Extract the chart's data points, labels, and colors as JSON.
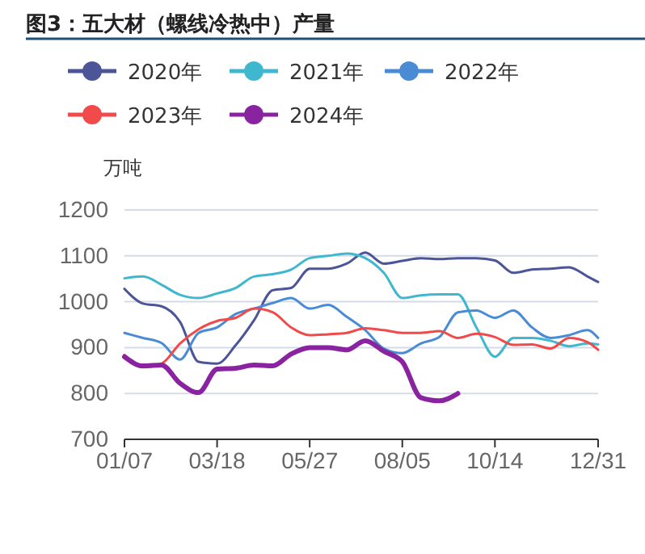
{
  "chart_data": {
    "type": "line",
    "title": "图3：五大材（螺线冷热中）产量",
    "ylabel": "万吨",
    "x": [
      "--01-07",
      "--01-21",
      "--02-04",
      "--02-18",
      "--03-04",
      "--03-18",
      "--04-01",
      "--04-15",
      "--04-29",
      "--05-13",
      "--05-27",
      "--06-10",
      "--06-24",
      "--07-08",
      "--07-22",
      "--08-05",
      "--08-19",
      "--09-02",
      "--09-16",
      "--09-30",
      "--10-14",
      "--10-28",
      "--11-11",
      "--11-25",
      "--12-09",
      "--12-23",
      "--12-31"
    ],
    "series": [
      {
        "name": "2020年",
        "color": "#4b5598",
        "values": [
          1028,
          996,
          990,
          956,
          869,
          865,
          905,
          960,
          1025,
          1030,
          1072,
          1072,
          1083,
          1107,
          1083,
          1089,
          1095,
          1093,
          1095,
          1095,
          1090,
          1063,
          1070,
          1072,
          1075,
          1055,
          1043
        ]
      },
      {
        "name": "2021年",
        "color": "#3fb8cf",
        "values": [
          1051,
          1055,
          1037,
          1015,
          1008,
          1018,
          1030,
          1055,
          1060,
          1070,
          1095,
          1100,
          1105,
          1095,
          1063,
          1008,
          1014,
          1016,
          1016,
          944,
          880,
          921,
          921,
          915,
          903,
          909,
          907
        ]
      },
      {
        "name": "2022年",
        "color": "#4a8bd6",
        "values": [
          932,
          921,
          910,
          874,
          932,
          944,
          973,
          985,
          997,
          1008,
          985,
          993,
          967,
          938,
          898,
          888,
          909,
          923,
          977,
          981,
          965,
          981,
          944,
          921,
          927,
          938,
          921
        ]
      },
      {
        "name": "2023年",
        "color": "#f04a4a",
        "values": [
          884,
          857,
          865,
          909,
          940,
          958,
          965,
          985,
          977,
          944,
          927,
          929,
          932,
          942,
          938,
          932,
          932,
          936,
          921,
          930,
          923,
          906,
          907,
          898,
          921,
          912,
          895
        ]
      },
      {
        "name": "2024年",
        "color": "#8a23a0",
        "values": [
          880,
          860,
          862,
          822,
          802,
          853,
          855,
          862,
          860,
          886,
          900,
          900,
          895,
          915,
          892,
          869,
          791,
          784,
          800,
          null,
          null,
          null,
          null,
          null,
          null,
          null,
          null
        ]
      }
    ],
    "xlim": [
      "--01-07",
      "--12-31"
    ],
    "xticks": [
      {
        "value": "--01-07",
        "label": "01/07"
      },
      {
        "value": "--03-18",
        "label": "03/18"
      },
      {
        "value": "--05-27",
        "label": "05/27"
      },
      {
        "value": "--08-05",
        "label": "08/05"
      },
      {
        "value": "--10-14",
        "label": "10/14"
      },
      {
        "value": "--12-31",
        "label": "12/31"
      }
    ],
    "ylim": [
      700,
      1200
    ],
    "yticks": [
      700,
      800,
      900,
      1000,
      1100,
      1200
    ],
    "grid": "y",
    "legend": "top left"
  }
}
